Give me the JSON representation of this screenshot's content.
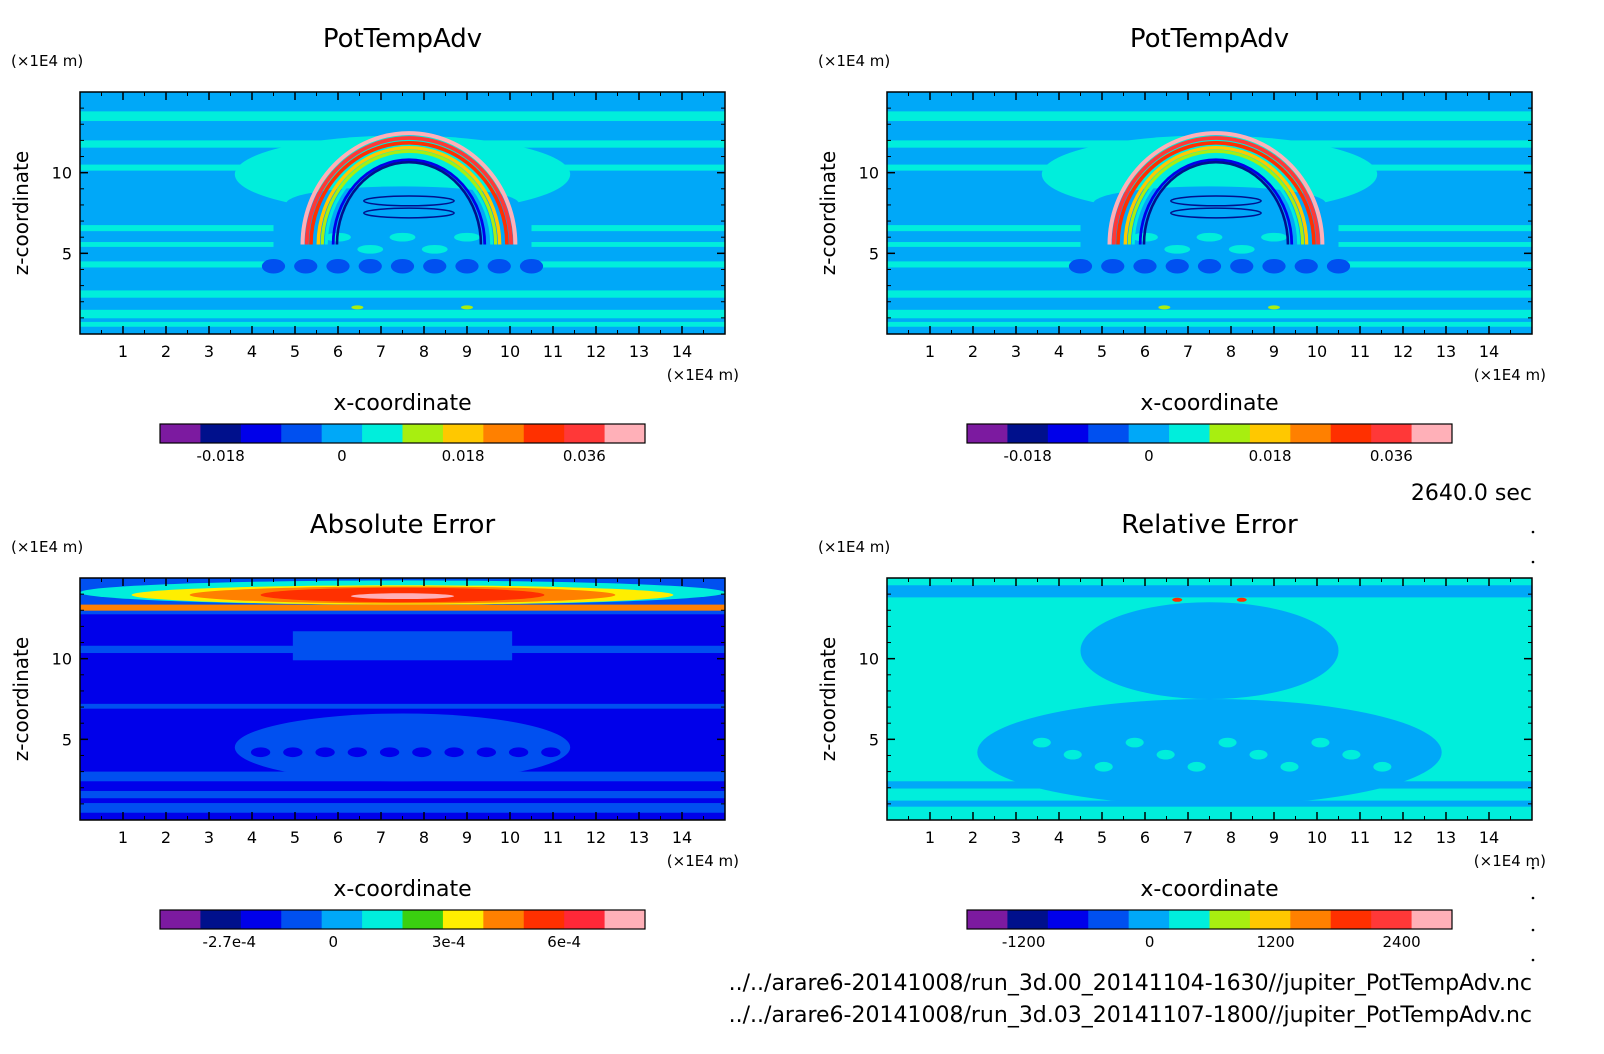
{
  "figure": {
    "time_label": "2640.0 sec",
    "file_lines": [
      "../../arare6-20141008/run_3d.00_20141104-1630//jupiter_PotTempAdv.nc",
      "../../arare6-20141008/run_3d.03_20141107-1800//jupiter_PotTempAdv.nc"
    ]
  },
  "chart_data": [
    {
      "type": "heatmap",
      "title": "PotTempAdv",
      "xlabel": "x-coordinate",
      "ylabel": "z-coordinate",
      "x_unit": "(×1E4 m)",
      "y_unit": "(×1E4 m)",
      "xlim": [
        0,
        15
      ],
      "ylim": [
        0,
        15
      ],
      "x_ticks": [
        "1",
        "2",
        "3",
        "4",
        "5",
        "6",
        "7",
        "8",
        "9",
        "10",
        "11",
        "12",
        "13",
        "14"
      ],
      "y_ticks": [
        "5",
        "10"
      ],
      "colorbar": {
        "colors": [
          "#7c1aa0",
          "#00108c",
          "#0000ea",
          "#0050f0",
          "#00a8f8",
          "#00eedc",
          "#a8ee10",
          "#ffc800",
          "#ff8000",
          "#ff3000",
          "#ff3838",
          "#ffb0b8"
        ],
        "tick_labels": [
          "-0.018",
          "0",
          "0.018",
          "0.036"
        ],
        "tick_values": [
          -0.018,
          0,
          0.018,
          0.036
        ],
        "range": [
          -0.027,
          0.045
        ]
      }
    },
    {
      "type": "heatmap",
      "title": "PotTempAdv",
      "xlabel": "x-coordinate",
      "ylabel": "z-coordinate",
      "x_unit": "(×1E4 m)",
      "y_unit": "(×1E4 m)",
      "xlim": [
        0,
        15
      ],
      "ylim": [
        0,
        15
      ],
      "x_ticks": [
        "1",
        "2",
        "3",
        "4",
        "5",
        "6",
        "7",
        "8",
        "9",
        "10",
        "11",
        "12",
        "13",
        "14"
      ],
      "y_ticks": [
        "5",
        "10"
      ],
      "colorbar": {
        "colors": [
          "#7c1aa0",
          "#00108c",
          "#0000ea",
          "#0050f0",
          "#00a8f8",
          "#00eedc",
          "#a8ee10",
          "#ffc800",
          "#ff8000",
          "#ff3000",
          "#ff3838",
          "#ffb0b8"
        ],
        "tick_labels": [
          "-0.018",
          "0",
          "0.018",
          "0.036"
        ],
        "tick_values": [
          -0.018,
          0,
          0.018,
          0.036
        ],
        "range": [
          -0.027,
          0.045
        ]
      }
    },
    {
      "type": "heatmap",
      "title": "Absolute Error",
      "xlabel": "x-coordinate",
      "ylabel": "z-coordinate",
      "x_unit": "(×1E4 m)",
      "y_unit": "(×1E4 m)",
      "xlim": [
        0,
        15
      ],
      "ylim": [
        0,
        15
      ],
      "x_ticks": [
        "1",
        "2",
        "3",
        "4",
        "5",
        "6",
        "7",
        "8",
        "9",
        "10",
        "11",
        "12",
        "13",
        "14"
      ],
      "y_ticks": [
        "5",
        "10"
      ],
      "colorbar": {
        "colors": [
          "#7c1aa0",
          "#00108c",
          "#0000ea",
          "#0050f0",
          "#00a8f8",
          "#00eedc",
          "#3ad010",
          "#ffee00",
          "#ff8000",
          "#ff3000",
          "#ff2838",
          "#ffb0b8"
        ],
        "tick_labels": [
          "-2.7e-4",
          "0",
          "3e-4",
          "6e-4"
        ],
        "tick_values": [
          -0.00027,
          0,
          0.0003,
          0.0006
        ],
        "range": [
          -0.00045,
          0.00081
        ]
      }
    },
    {
      "type": "heatmap",
      "title": "Relative Error",
      "xlabel": "x-coordinate",
      "ylabel": "z-coordinate",
      "x_unit": "(×1E4 m)",
      "y_unit": "(×1E4 m)",
      "xlim": [
        0,
        15
      ],
      "ylim": [
        0,
        15
      ],
      "x_ticks": [
        "1",
        "2",
        "3",
        "4",
        "5",
        "6",
        "7",
        "8",
        "9",
        "10",
        "11",
        "12",
        "13",
        "14"
      ],
      "y_ticks": [
        "5",
        "10"
      ],
      "colorbar": {
        "colors": [
          "#7c1aa0",
          "#00108c",
          "#0000ea",
          "#0050f0",
          "#00a8f8",
          "#00eedc",
          "#a8ee10",
          "#ffc800",
          "#ff8000",
          "#ff3000",
          "#ff3838",
          "#ffb0b8"
        ],
        "tick_labels": [
          "-1200",
          "0",
          "1200",
          "2400"
        ],
        "tick_values": [
          -1200,
          0,
          1200,
          2400
        ],
        "range": [
          -1740,
          2880
        ]
      }
    }
  ]
}
